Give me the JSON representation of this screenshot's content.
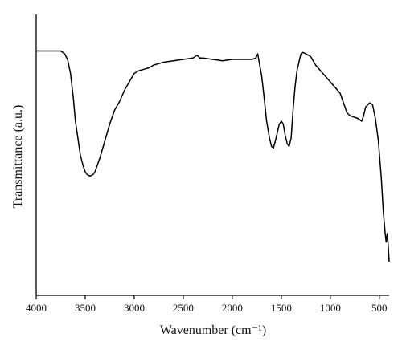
{
  "chart_data": {
    "type": "line",
    "xlabel": "Wavenumber (cm⁻¹)",
    "ylabel": "Transmittance (a.u.)",
    "xlim": [
      4000,
      400
    ],
    "x_reversed": true,
    "ylim": [
      0,
      100
    ],
    "y_ticks_shown": false,
    "grid": false,
    "x_ticks": [
      4000,
      3500,
      3000,
      2500,
      2000,
      1500,
      1000,
      500
    ],
    "series": [
      {
        "color": "#000000",
        "points": [
          [
            4000,
            87
          ],
          [
            3900,
            87
          ],
          [
            3800,
            87
          ],
          [
            3750,
            87
          ],
          [
            3710,
            86
          ],
          [
            3680,
            84
          ],
          [
            3650,
            79
          ],
          [
            3620,
            70
          ],
          [
            3600,
            62
          ],
          [
            3570,
            55
          ],
          [
            3550,
            50
          ],
          [
            3520,
            46
          ],
          [
            3500,
            44
          ],
          [
            3480,
            43
          ],
          [
            3450,
            42.5
          ],
          [
            3420,
            43
          ],
          [
            3400,
            44
          ],
          [
            3380,
            46
          ],
          [
            3350,
            49
          ],
          [
            3300,
            55
          ],
          [
            3250,
            61
          ],
          [
            3200,
            66
          ],
          [
            3150,
            69
          ],
          [
            3100,
            73
          ],
          [
            3050,
            76
          ],
          [
            3000,
            79
          ],
          [
            2950,
            80
          ],
          [
            2900,
            80.5
          ],
          [
            2850,
            81
          ],
          [
            2800,
            82
          ],
          [
            2750,
            82.5
          ],
          [
            2700,
            83
          ],
          [
            2600,
            83.5
          ],
          [
            2500,
            84
          ],
          [
            2400,
            84.5
          ],
          [
            2360,
            85.5
          ],
          [
            2330,
            84.5
          ],
          [
            2300,
            84.5
          ],
          [
            2200,
            84
          ],
          [
            2100,
            83.5
          ],
          [
            2000,
            84
          ],
          [
            1900,
            84
          ],
          [
            1800,
            84
          ],
          [
            1760,
            84.5
          ],
          [
            1740,
            86
          ],
          [
            1720,
            82
          ],
          [
            1700,
            78
          ],
          [
            1680,
            72
          ],
          [
            1650,
            62
          ],
          [
            1620,
            56
          ],
          [
            1600,
            53
          ],
          [
            1580,
            52.5
          ],
          [
            1560,
            55
          ],
          [
            1540,
            58
          ],
          [
            1520,
            61
          ],
          [
            1500,
            62
          ],
          [
            1480,
            61
          ],
          [
            1460,
            57
          ],
          [
            1440,
            54
          ],
          [
            1420,
            53
          ],
          [
            1400,
            56
          ],
          [
            1380,
            66
          ],
          [
            1360,
            74
          ],
          [
            1340,
            80
          ],
          [
            1320,
            83
          ],
          [
            1300,
            86
          ],
          [
            1280,
            86.5
          ],
          [
            1250,
            86
          ],
          [
            1200,
            85
          ],
          [
            1150,
            82
          ],
          [
            1100,
            80
          ],
          [
            1050,
            78
          ],
          [
            1000,
            76
          ],
          [
            950,
            74
          ],
          [
            900,
            72
          ],
          [
            860,
            68
          ],
          [
            830,
            65
          ],
          [
            800,
            64
          ],
          [
            760,
            63.5
          ],
          [
            720,
            63
          ],
          [
            680,
            62
          ],
          [
            660,
            64
          ],
          [
            640,
            67
          ],
          [
            600,
            68.5
          ],
          [
            570,
            68
          ],
          [
            540,
            63
          ],
          [
            510,
            55
          ],
          [
            480,
            42
          ],
          [
            460,
            30
          ],
          [
            440,
            22
          ],
          [
            430,
            19
          ],
          [
            420,
            22
          ],
          [
            410,
            18
          ],
          [
            400,
            12
          ]
        ]
      }
    ]
  }
}
